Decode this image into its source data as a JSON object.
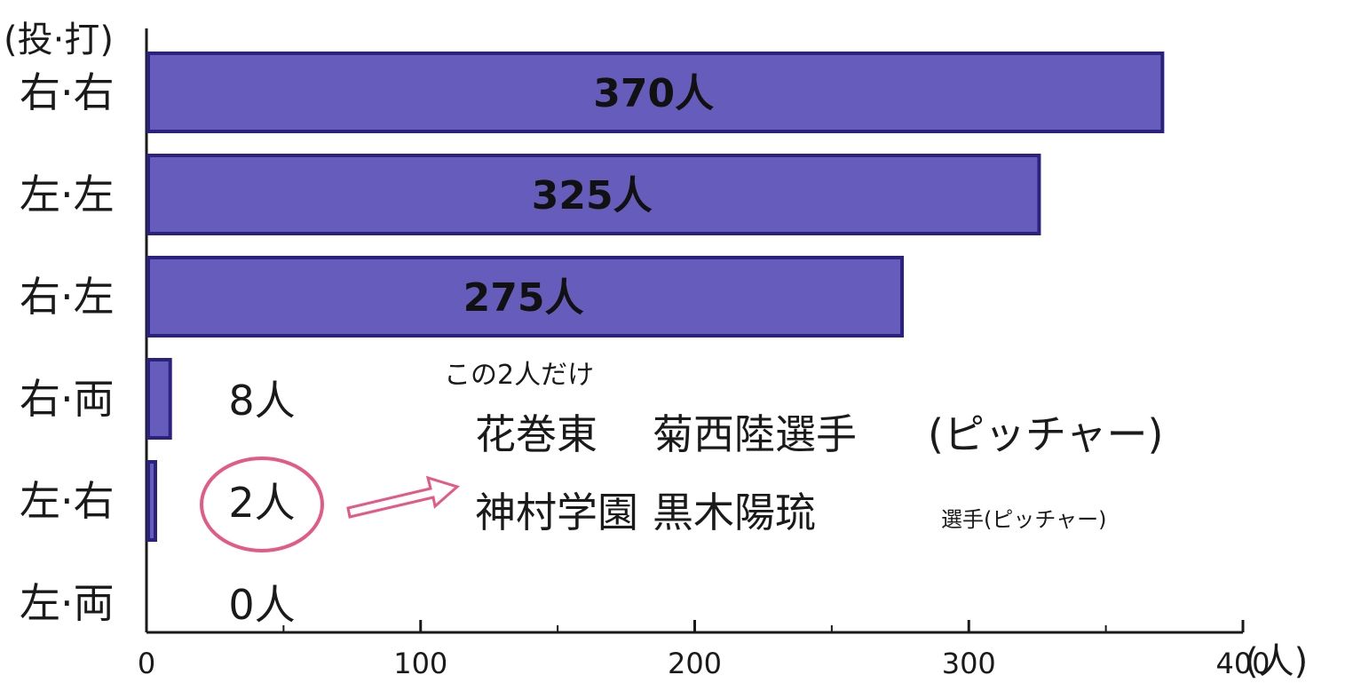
{
  "chart_data": {
    "type": "bar",
    "orientation": "horizontal",
    "categories": [
      "右·右",
      "左·左",
      "右·左",
      "右·両",
      "左·右",
      "左·両"
    ],
    "values": [
      370,
      325,
      275,
      8,
      2,
      0
    ],
    "value_labels": [
      "370人",
      "325人",
      "275人",
      "8人",
      "2人",
      "0人"
    ],
    "y_axis_label": "(投·打)",
    "x_unit_label": "(人)",
    "xlim": [
      0,
      400
    ],
    "x_ticks": [
      0,
      100,
      200,
      300,
      400
    ],
    "x_tick_labels": [
      "0",
      "100",
      "200",
      "300",
      "400"
    ],
    "bar_color": "#4b3fb0",
    "highlight_color": "#e35a86",
    "highlight_index": 4,
    "annotation": {
      "heading": "この2人だけ",
      "lines": [
        {
          "school": "花巻東",
          "player": "菊西陸選手",
          "position": "(ピッチャー)"
        },
        {
          "school": "神村学園",
          "player": "黒木陽琉",
          "position": "選手(ピッチャー)"
        }
      ]
    }
  }
}
